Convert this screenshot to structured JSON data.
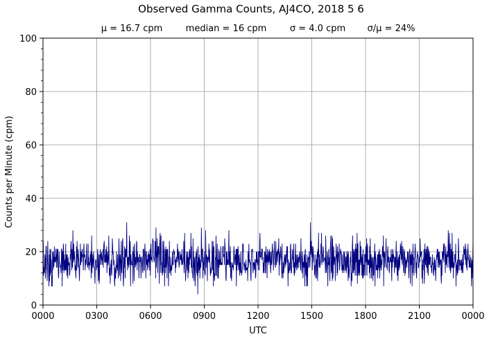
{
  "chart_data": {
    "type": "line",
    "title": "Observed Gamma Counts, AJ4CO, 2018 5 6",
    "stats": [
      "μ = 16.7 cpm",
      "median = 16 cpm",
      "σ = 4.0 cpm",
      "σ/μ = 24%"
    ],
    "xlabel": "UTC",
    "ylabel": "Counts per Minute (cpm)",
    "xlim": [
      0,
      1440
    ],
    "ylim": [
      0,
      100
    ],
    "x_units": "minutes since 0000 UTC",
    "x_ticks": [
      {
        "value": 0,
        "label": "0000"
      },
      {
        "value": 180,
        "label": "0300"
      },
      {
        "value": 360,
        "label": "0600"
      },
      {
        "value": 540,
        "label": "0900"
      },
      {
        "value": 720,
        "label": "1200"
      },
      {
        "value": 900,
        "label": "1500"
      },
      {
        "value": 1080,
        "label": "1800"
      },
      {
        "value": 1260,
        "label": "2100"
      },
      {
        "value": 1440,
        "label": "0000"
      }
    ],
    "y_ticks": [
      {
        "value": 0,
        "label": "0"
      },
      {
        "value": 20,
        "label": "20"
      },
      {
        "value": 40,
        "label": "40"
      },
      {
        "value": 60,
        "label": "60"
      },
      {
        "value": 80,
        "label": "80"
      },
      {
        "value": 100,
        "label": "100"
      }
    ],
    "grid": true,
    "series": [
      {
        "color": "#000080",
        "summary": {
          "points": 1440,
          "mean": 16.7,
          "median": 16,
          "std": 4.0,
          "min": 4,
          "max": 31
        },
        "notable_points": [
          {
            "x": 280,
            "y": 31
          },
          {
            "x": 895,
            "y": 31
          },
          {
            "x": 518,
            "y": 4
          },
          {
            "x": 378,
            "y": 29
          },
          {
            "x": 530,
            "y": 29
          },
          {
            "x": 1356,
            "y": 28
          },
          {
            "x": 100,
            "y": 28
          },
          {
            "x": 1,
            "y": 24
          },
          {
            "x": 1439,
            "y": 24
          }
        ]
      }
    ]
  }
}
